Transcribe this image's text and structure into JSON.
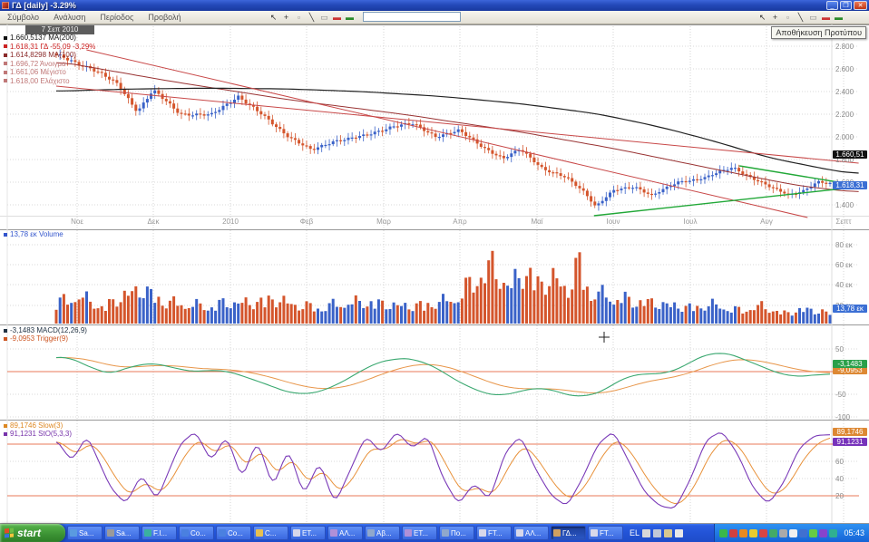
{
  "window": {
    "title": "ΓΔ [daily] -3.29%",
    "controls": {
      "minimize": "_",
      "restore": "❐",
      "close": "✕"
    }
  },
  "menu": {
    "items": [
      "Σύμβολο",
      "Ανάλυση",
      "Περίοδος",
      "Προβολή"
    ],
    "symbol_input": {
      "value": "",
      "placeholder": ""
    }
  },
  "toolbar": {
    "tooltip": "Αποθήκευση Προτύπου",
    "left_icons": [
      {
        "name": "pointer-icon",
        "glyph": "↖",
        "color": "#333333"
      },
      {
        "name": "crosshair-icon",
        "glyph": "+",
        "color": "#333333"
      },
      {
        "name": "zoom-box-icon",
        "glyph": "▫",
        "color": "#888888"
      },
      {
        "name": "trendline-tool-icon",
        "glyph": "╲",
        "color": "#333333"
      },
      {
        "name": "text-tool-icon",
        "glyph": "▭",
        "color": "#888888"
      },
      {
        "name": "delete-template-icon",
        "glyph": "▬",
        "color": "#cc3333"
      },
      {
        "name": "save-template-icon",
        "glyph": "▬",
        "color": "#2a8a2a"
      }
    ],
    "right_icons": [
      {
        "name": "pointer-icon",
        "glyph": "↖",
        "color": "#333333"
      },
      {
        "name": "crosshair-icon",
        "glyph": "+",
        "color": "#333333"
      },
      {
        "name": "zoom-box-icon",
        "glyph": "▫",
        "color": "#888888"
      },
      {
        "name": "trendline-tool-icon",
        "glyph": "╲",
        "color": "#333333"
      },
      {
        "name": "text-tool-icon",
        "glyph": "▭",
        "color": "#888888"
      },
      {
        "name": "delete-template-icon",
        "glyph": "▬",
        "color": "#cc3333"
      },
      {
        "name": "save-template-icon",
        "glyph": "▬",
        "color": "#2a8a2a"
      }
    ]
  },
  "chart": {
    "date_label": "7 Σεπ 2010",
    "legend": [
      {
        "text": "1.660,5137 ΜΑ(200)",
        "color": "#111111"
      },
      {
        "text": "1.618,31 ΓΔ  -55,09  -3,29%",
        "color": "#cc2222"
      },
      {
        "text": "1.614,8298 ΜΑ(100)",
        "color": "#8a2a2a"
      },
      {
        "text": "1.696,72 Άνοιγμα",
        "color": "#c07878"
      },
      {
        "text": "1.661,06 Μέγιστο",
        "color": "#c07878"
      },
      {
        "text": "1.618,00 Ελάχιστο",
        "color": "#c07878"
      }
    ],
    "y_ticks": [
      "2.800",
      "2.600",
      "2.400",
      "2.200",
      "2.000",
      "1.800",
      "1.600",
      "1.400"
    ],
    "badges": [
      {
        "text": "1.660,51",
        "bg": "#111111"
      },
      {
        "text": "1.618,31",
        "bg": "#3b6fd4"
      }
    ],
    "x_ticks": [
      "Νοε",
      "Δεκ",
      "2010",
      "Φεβ",
      "Μαρ",
      "Απρ",
      "Μαϊ",
      "Ιουν",
      "Ιουλ",
      "Αυγ",
      "Σεπτ"
    ]
  },
  "volume": {
    "legend": {
      "text": "13,78 εκ Volume",
      "color": "#3355cc"
    },
    "y_ticks": [
      "80 εκ",
      "60 εκ",
      "40 εκ",
      "20 εκ"
    ],
    "badge": {
      "text": "13,78 εκ",
      "bg": "#3b6fd4"
    }
  },
  "macd": {
    "legend": [
      {
        "text": "-3,1483 MACD(12,26,9)",
        "color": "#223344"
      },
      {
        "text": "-9,0953 Trigger(9)",
        "color": "#cc5522"
      }
    ],
    "y_ticks": [
      "50",
      "-50",
      "-100"
    ],
    "badges": [
      {
        "text": "-9,0953",
        "bg": "#dd8833"
      },
      {
        "text": "-3,1483",
        "bg": "#2aa04a"
      }
    ]
  },
  "stoch": {
    "legend": [
      {
        "text": "89,1746 Slow(3)",
        "color": "#dd8822"
      },
      {
        "text": "91,1231 StO(5,3,3)",
        "color": "#7733aa"
      }
    ],
    "y_ticks": [
      "60",
      "40",
      "20"
    ],
    "badges": [
      {
        "text": "89,1746",
        "bg": "#dd8833"
      },
      {
        "text": "91,1231",
        "bg": "#7733bb"
      }
    ]
  },
  "colors": {
    "up": "#3a62c8",
    "down": "#d4552c",
    "ma200": "#222222",
    "ma100": "#993333",
    "trend": "#c84848",
    "wedge": "#22a838",
    "macd_line": "#3aa870",
    "trigger_line": "#e8964a",
    "stoch_fast": "#7a3ab8",
    "stoch_slow": "#e8913a",
    "threshold": "#e87858",
    "grid": "#d8d8d8",
    "grid_v": "#d4d4d4"
  },
  "chart_data": [
    {
      "type": "candlestick",
      "title": "ΓΔ [daily]",
      "ylim": [
        1400,
        2800
      ],
      "y_ticks": [
        2800,
        2600,
        2400,
        2200,
        2000,
        1800,
        1600,
        1400
      ],
      "x_months": [
        "Νοε",
        "Δεκ",
        "2010",
        "Φεβ",
        "Μαρ",
        "Απρ",
        "Μαϊ",
        "Ιουν",
        "Ιουλ",
        "Αυγ",
        "Σεπτ"
      ],
      "last": {
        "close": 1618.31,
        "change": -55.09,
        "change_pct": -3.29,
        "open": 1696.72,
        "high": 1661.06,
        "low": 1618.0,
        "ma200": 1660.5137,
        "ma100": 1614.8298
      },
      "close_path": [
        [
          0,
          2750
        ],
        [
          0.045,
          2640
        ],
        [
          0.08,
          2490
        ],
        [
          0.105,
          2260
        ],
        [
          0.125,
          2440
        ],
        [
          0.16,
          2240
        ],
        [
          0.2,
          2220
        ],
        [
          0.235,
          2395
        ],
        [
          0.27,
          2200
        ],
        [
          0.3,
          2040
        ],
        [
          0.33,
          1910
        ],
        [
          0.36,
          2000
        ],
        [
          0.4,
          2040
        ],
        [
          0.435,
          2130
        ],
        [
          0.46,
          2145
        ],
        [
          0.49,
          2040
        ],
        [
          0.52,
          2085
        ],
        [
          0.55,
          1950
        ],
        [
          0.578,
          1840
        ],
        [
          0.6,
          1920
        ],
        [
          0.63,
          1750
        ],
        [
          0.66,
          1665
        ],
        [
          0.683,
          1545
        ],
        [
          0.697,
          1420
        ],
        [
          0.72,
          1555
        ],
        [
          0.748,
          1595
        ],
        [
          0.77,
          1515
        ],
        [
          0.805,
          1635
        ],
        [
          0.84,
          1675
        ],
        [
          0.875,
          1765
        ],
        [
          0.9,
          1665
        ],
        [
          0.923,
          1585
        ],
        [
          0.947,
          1525
        ],
        [
          0.965,
          1555
        ],
        [
          0.985,
          1630
        ],
        [
          1,
          1618
        ]
      ],
      "ma200": [
        [
          0,
          2435
        ],
        [
          0.1,
          2455
        ],
        [
          0.2,
          2462
        ],
        [
          0.3,
          2455
        ],
        [
          0.4,
          2430
        ],
        [
          0.5,
          2388
        ],
        [
          0.6,
          2325
        ],
        [
          0.7,
          2235
        ],
        [
          0.78,
          2120
        ],
        [
          0.85,
          1995
        ],
        [
          0.92,
          1850
        ],
        [
          1,
          1740
        ],
        [
          1.037,
          1700
        ]
      ],
      "ma100": [
        [
          0,
          2700
        ],
        [
          0.15,
          2520
        ],
        [
          0.3,
          2360
        ],
        [
          0.45,
          2230
        ],
        [
          0.6,
          2075
        ],
        [
          0.72,
          1930
        ],
        [
          0.82,
          1790
        ],
        [
          0.9,
          1680
        ],
        [
          0.96,
          1600
        ],
        [
          1.037,
          1540
        ]
      ],
      "trendlines_red": [
        [
          [
            0,
            2480
          ],
          [
            1.037,
            1800
          ]
        ],
        [
          [
            0.039,
            2800
          ],
          [
            0.971,
            1320
          ]
        ]
      ],
      "wedge_green": [
        [
          [
            0.883,
            1776
          ],
          [
            1.039,
            1600
          ]
        ],
        [
          [
            0.695,
            1336
          ],
          [
            1.039,
            1592
          ]
        ]
      ]
    },
    {
      "type": "bar",
      "name": "Volume",
      "unit": "εκ",
      "last": 13.78,
      "y_ticks": [
        80,
        60,
        40,
        20
      ],
      "envelope": [
        [
          0,
          28
        ],
        [
          0.03,
          38
        ],
        [
          0.06,
          22
        ],
        [
          0.09,
          40
        ],
        [
          0.11,
          48
        ],
        [
          0.14,
          30
        ],
        [
          0.17,
          26
        ],
        [
          0.2,
          24
        ],
        [
          0.225,
          30
        ],
        [
          0.25,
          28
        ],
        [
          0.28,
          34
        ],
        [
          0.31,
          26
        ],
        [
          0.34,
          22
        ],
        [
          0.37,
          28
        ],
        [
          0.4,
          30
        ],
        [
          0.43,
          26
        ],
        [
          0.46,
          24
        ],
        [
          0.49,
          28
        ],
        [
          0.52,
          36
        ],
        [
          0.545,
          68
        ],
        [
          0.565,
          78
        ],
        [
          0.585,
          50
        ],
        [
          0.605,
          72
        ],
        [
          0.625,
          55
        ],
        [
          0.645,
          62
        ],
        [
          0.66,
          48
        ],
        [
          0.675,
          82
        ],
        [
          0.69,
          45
        ],
        [
          0.71,
          38
        ],
        [
          0.73,
          34
        ],
        [
          0.76,
          30
        ],
        [
          0.79,
          26
        ],
        [
          0.82,
          22
        ],
        [
          0.85,
          26
        ],
        [
          0.88,
          18
        ],
        [
          0.91,
          24
        ],
        [
          0.94,
          14
        ],
        [
          0.97,
          20
        ],
        [
          1,
          14
        ]
      ]
    },
    {
      "type": "line",
      "name": "MACD(12,26,9)",
      "last": -3.1483,
      "trigger_last": -9.0953,
      "y_ticks": [
        50,
        0,
        -50,
        -100
      ],
      "zero_line": 0,
      "path": [
        [
          0,
          28
        ],
        [
          0.03,
          35
        ],
        [
          0.056,
          -15
        ],
        [
          0.1,
          15
        ],
        [
          0.138,
          20
        ],
        [
          0.17,
          -5
        ],
        [
          0.209,
          8
        ],
        [
          0.256,
          -18
        ],
        [
          0.314,
          -55
        ],
        [
          0.36,
          -35
        ],
        [
          0.4,
          10
        ],
        [
          0.431,
          30
        ],
        [
          0.472,
          28
        ],
        [
          0.537,
          -40
        ],
        [
          0.578,
          -58
        ],
        [
          0.619,
          -30
        ],
        [
          0.683,
          -62
        ],
        [
          0.72,
          -30
        ],
        [
          0.748,
          2
        ],
        [
          0.783,
          -12
        ],
        [
          0.853,
          50
        ],
        [
          0.9,
          20
        ],
        [
          0.947,
          -14
        ],
        [
          1,
          -3.1
        ]
      ]
    },
    {
      "type": "line",
      "name": "StO(5,3,3)",
      "last": 91.1231,
      "slow_last": 89.1746,
      "y_ticks": [
        80,
        60,
        40,
        20
      ],
      "bands": [
        80,
        20
      ],
      "path": [
        [
          0,
          85
        ],
        [
          0.02,
          60
        ],
        [
          0.04,
          90
        ],
        [
          0.07,
          30
        ],
        [
          0.09,
          10
        ],
        [
          0.11,
          45
        ],
        [
          0.13,
          15
        ],
        [
          0.16,
          80
        ],
        [
          0.18,
          95
        ],
        [
          0.2,
          60
        ],
        [
          0.22,
          90
        ],
        [
          0.24,
          40
        ],
        [
          0.26,
          85
        ],
        [
          0.28,
          30
        ],
        [
          0.3,
          75
        ],
        [
          0.32,
          20
        ],
        [
          0.34,
          60
        ],
        [
          0.36,
          10
        ],
        [
          0.38,
          50
        ],
        [
          0.4,
          90
        ],
        [
          0.42,
          70
        ],
        [
          0.44,
          95
        ],
        [
          0.46,
          75
        ],
        [
          0.48,
          90
        ],
        [
          0.5,
          40
        ],
        [
          0.52,
          10
        ],
        [
          0.54,
          35
        ],
        [
          0.56,
          15
        ],
        [
          0.58,
          70
        ],
        [
          0.6,
          90
        ],
        [
          0.62,
          50
        ],
        [
          0.64,
          20
        ],
        [
          0.66,
          8
        ],
        [
          0.68,
          40
        ],
        [
          0.7,
          80
        ],
        [
          0.72,
          95
        ],
        [
          0.74,
          60
        ],
        [
          0.76,
          25
        ],
        [
          0.78,
          8
        ],
        [
          0.8,
          5
        ],
        [
          0.82,
          40
        ],
        [
          0.84,
          85
        ],
        [
          0.86,
          95
        ],
        [
          0.88,
          70
        ],
        [
          0.9,
          30
        ],
        [
          0.92,
          10
        ],
        [
          0.94,
          35
        ],
        [
          0.96,
          75
        ],
        [
          0.98,
          90
        ],
        [
          1,
          91
        ]
      ]
    }
  ],
  "taskbar": {
    "start_label": "start",
    "buttons": [
      {
        "label": "Sa...",
        "icon_color": "#5a9ae0"
      },
      {
        "label": "Sa...",
        "icon_color": "#9a9a9a"
      },
      {
        "label": "F.I...",
        "icon_color": "#3ab0a0"
      },
      {
        "label": "Co...",
        "icon_color": "#4a80e0"
      },
      {
        "label": "Co...",
        "icon_color": "#4a80e0"
      },
      {
        "label": "C...",
        "icon_color": "#e8c050"
      },
      {
        "label": "ΕΤ...",
        "icon_color": "#d8d8ea"
      },
      {
        "label": "ΑΛ...",
        "icon_color": "#b090d8"
      },
      {
        "label": "Αβ...",
        "icon_color": "#90a8cc"
      },
      {
        "label": "ΕΤ...",
        "icon_color": "#b090d8"
      },
      {
        "label": "Πο...",
        "icon_color": "#90a8cc"
      },
      {
        "label": "FT...",
        "icon_color": "#d8d8ea"
      },
      {
        "label": "ΑΛ...",
        "icon_color": "#d8d8ea"
      },
      {
        "label": "ΓΔ...",
        "icon_color": "#d0a060",
        "active": true
      },
      {
        "label": "FT...",
        "icon_color": "#d8d8ea"
      }
    ],
    "language_indicator": "EL",
    "quick_icons": [
      {
        "name": "pen-icon",
        "color": "#d8d8d8"
      },
      {
        "name": "display-icon",
        "color": "#c0c8d8"
      },
      {
        "name": "shield-icon",
        "color": "#d8c890"
      },
      {
        "name": "help-icon",
        "color": "#e8e8e8"
      }
    ],
    "tray_icons": [
      "#3ab84a",
      "#d04040",
      "#e88a20",
      "#e8cc30",
      "#d84444",
      "#44aa66",
      "#aaaaaa",
      "#f0f0f0",
      "#4070d0",
      "#66cc44",
      "#8844cc",
      "#30b090"
    ],
    "clock": "05:43",
    "flag_colors": [
      "#e24b26",
      "#6cbd45",
      "#3a6fe0",
      "#f3c43e"
    ]
  }
}
